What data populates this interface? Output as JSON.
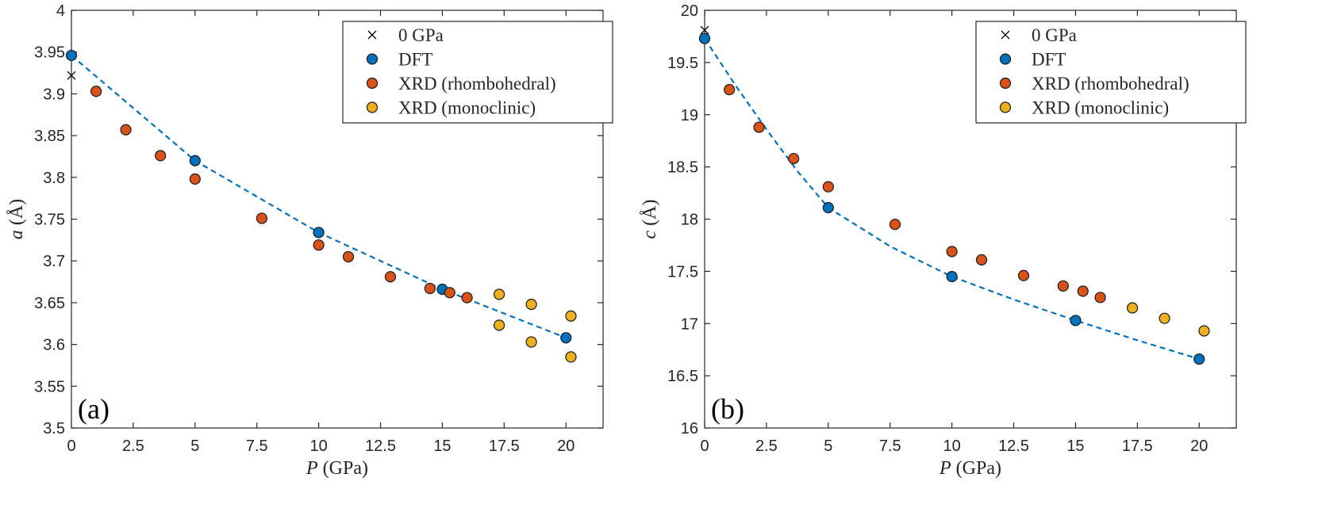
{
  "colors": {
    "dft": "#0072BD",
    "rhombo": "#D95319",
    "mono": "#EDB120",
    "axis": "#262626",
    "marker_edge": "#1a1a1a"
  },
  "chart_data": [
    {
      "type": "scatter",
      "panel_label": "(a)",
      "xlabel_var": "P",
      "xlabel_unit": " (GPa)",
      "ylabel_var": "a",
      "ylabel_unit": " (Å)",
      "xlim": [
        0,
        21.5
      ],
      "ylim": [
        3.5,
        4.0
      ],
      "xticks": [
        0,
        2.5,
        5,
        7.5,
        10,
        12.5,
        15,
        17.5,
        20
      ],
      "xtick_labels": [
        "0",
        "2.5",
        "5",
        "7.5",
        "10",
        "12.5",
        "15",
        "17.5",
        "20"
      ],
      "yticks": [
        3.5,
        3.55,
        3.6,
        3.65,
        3.7,
        3.75,
        3.8,
        3.85,
        3.9,
        3.95,
        4.0
      ],
      "ytick_labels": [
        "3.5",
        "3.55",
        "3.6",
        "3.65",
        "3.7",
        "3.75",
        "3.8",
        "3.85",
        "3.9",
        "3.95",
        "4"
      ],
      "legend_position": "top-right",
      "legend": [
        "0 GPa",
        "DFT",
        "XRD (rhombohedral)",
        "XRD (monoclinic)"
      ],
      "series": [
        {
          "name": "0 GPa",
          "kind": "cross",
          "points": [
            [
              0,
              3.922
            ]
          ]
        },
        {
          "name": "DFT",
          "kind": "dft",
          "points": [
            [
              0,
              3.946
            ],
            [
              5,
              3.82
            ],
            [
              10,
              3.734
            ],
            [
              15,
              3.666
            ],
            [
              20,
              3.608
            ]
          ]
        },
        {
          "name": "XRD (rhombohedral)",
          "kind": "rhombo",
          "points": [
            [
              1.0,
              3.903
            ],
            [
              2.2,
              3.857
            ],
            [
              3.6,
              3.826
            ],
            [
              5.0,
              3.798
            ],
            [
              7.7,
              3.751
            ],
            [
              10.0,
              3.719
            ],
            [
              11.2,
              3.705
            ],
            [
              12.9,
              3.681
            ],
            [
              14.5,
              3.667
            ],
            [
              15.3,
              3.662
            ],
            [
              16.0,
              3.656
            ]
          ]
        },
        {
          "name": "XRD (monoclinic)",
          "kind": "mono",
          "points": [
            [
              17.3,
              3.66
            ],
            [
              17.3,
              3.623
            ],
            [
              18.6,
              3.648
            ],
            [
              18.6,
              3.603
            ],
            [
              20.2,
              3.634
            ],
            [
              20.2,
              3.585
            ]
          ]
        }
      ],
      "fit_line": [
        [
          0,
          3.946
        ],
        [
          5,
          3.82
        ],
        [
          10,
          3.734
        ],
        [
          15,
          3.666
        ],
        [
          20,
          3.608
        ]
      ]
    },
    {
      "type": "scatter",
      "panel_label": "(b)",
      "xlabel_var": "P",
      "xlabel_unit": " (GPa)",
      "ylabel_var": "c",
      "ylabel_unit": " (Å)",
      "xlim": [
        0,
        21.5
      ],
      "ylim": [
        16,
        20
      ],
      "xticks": [
        0,
        2.5,
        5,
        7.5,
        10,
        12.5,
        15,
        17.5,
        20
      ],
      "xtick_labels": [
        "0",
        "2.5",
        "5",
        "7.5",
        "10",
        "12.5",
        "15",
        "17.5",
        "20"
      ],
      "yticks": [
        16,
        16.5,
        17,
        17.5,
        18,
        18.5,
        19,
        19.5,
        20
      ],
      "ytick_labels": [
        "16",
        "16.5",
        "17",
        "17.5",
        "18",
        "18.5",
        "19",
        "19.5",
        "20"
      ],
      "legend_position": "top-right",
      "legend": [
        "0 GPa",
        "DFT",
        "XRD (rhombohedral)",
        "XRD (monoclinic)"
      ],
      "series": [
        {
          "name": "0 GPa",
          "kind": "cross",
          "points": [
            [
              0,
              19.81
            ]
          ]
        },
        {
          "name": "DFT",
          "kind": "dft",
          "points": [
            [
              0,
              19.73
            ],
            [
              5,
              18.11
            ],
            [
              10,
              17.45
            ],
            [
              15,
              17.03
            ],
            [
              20,
              16.66
            ]
          ]
        },
        {
          "name": "XRD (rhombohedral)",
          "kind": "rhombo",
          "points": [
            [
              1.0,
              19.24
            ],
            [
              2.2,
              18.88
            ],
            [
              3.6,
              18.58
            ],
            [
              5.0,
              18.31
            ],
            [
              7.7,
              17.95
            ],
            [
              10.0,
              17.69
            ],
            [
              11.2,
              17.61
            ],
            [
              12.9,
              17.46
            ],
            [
              14.5,
              17.36
            ],
            [
              15.3,
              17.31
            ],
            [
              16.0,
              17.25
            ]
          ]
        },
        {
          "name": "XRD (monoclinic)",
          "kind": "mono",
          "points": [
            [
              17.3,
              17.15
            ],
            [
              18.6,
              17.05
            ],
            [
              20.2,
              16.93
            ]
          ]
        }
      ],
      "fit_line": [
        [
          0,
          19.73
        ],
        [
          1.25,
          19.28
        ],
        [
          2.5,
          18.86
        ],
        [
          3.75,
          18.46
        ],
        [
          5,
          18.11
        ],
        [
          7.5,
          17.74
        ],
        [
          10,
          17.45
        ],
        [
          12.5,
          17.23
        ],
        [
          15,
          17.03
        ],
        [
          17.5,
          16.84
        ],
        [
          20,
          16.66
        ]
      ]
    }
  ]
}
